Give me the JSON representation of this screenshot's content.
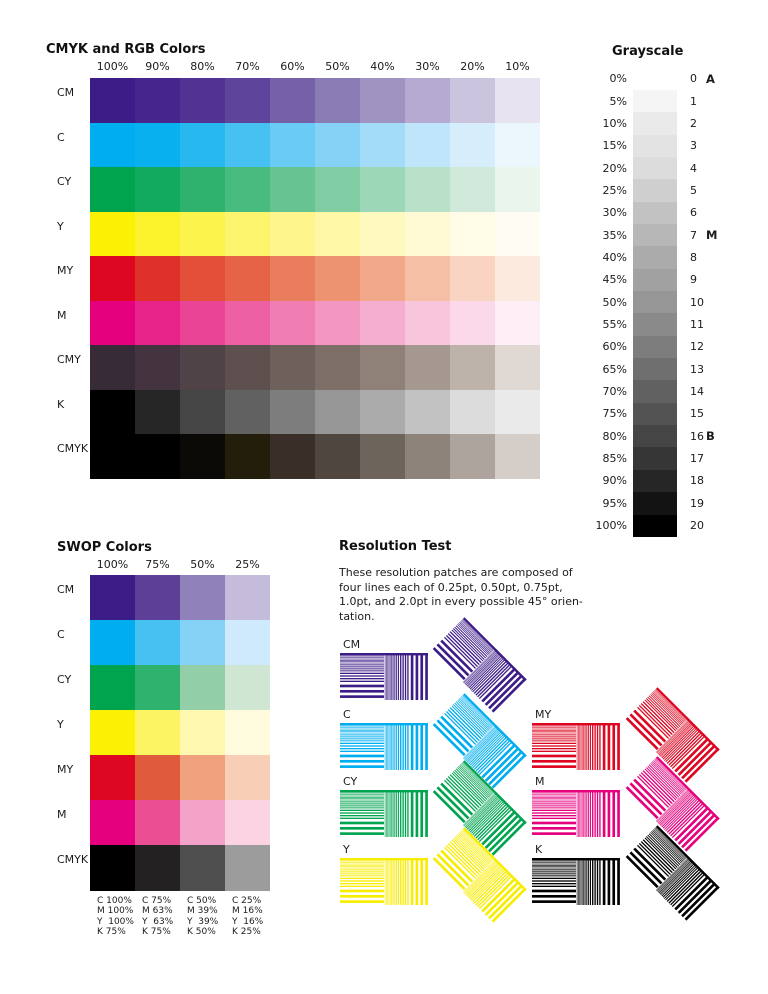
{
  "page": {
    "background": "#ffffff",
    "text_color": "#1b1b1b"
  },
  "cmyk_rgb": {
    "title": "CMYK and RGB Colors",
    "column_headers": [
      "100%",
      "90%",
      "80%",
      "70%",
      "60%",
      "50%",
      "40%",
      "30%",
      "20%",
      "10%"
    ],
    "rows": [
      {
        "label": "CM",
        "cells": [
          "#3c1d87",
          "#46258c",
          "#523394",
          "#5f449c",
          "#7661a9",
          "#8a7cb4",
          "#9f93c2",
          "#b5abd0",
          "#cbc4de",
          "#e7e3f1"
        ]
      },
      {
        "label": "C",
        "cells": [
          "#00adee",
          "#09b0ef",
          "#27b8f0",
          "#47c0f2",
          "#6acbf4",
          "#85d2f6",
          "#a2dcf8",
          "#bfe5fa",
          "#d6edfb",
          "#ebf6fd"
        ]
      },
      {
        "label": "CY",
        "cells": [
          "#00a44f",
          "#12aa5c",
          "#2eb26d",
          "#48bb7f",
          "#65c491",
          "#80cda4",
          "#9cd7b7",
          "#b9e1ca",
          "#d1e9da",
          "#eaf5ec"
        ]
      },
      {
        "label": "Y",
        "cells": [
          "#fcf005",
          "#fcf22b",
          "#fdf34d",
          "#fdf46d",
          "#fef68c",
          "#fef7a6",
          "#fef9bf",
          "#fffad4",
          "#fffce7",
          "#fffdf3"
        ]
      },
      {
        "label": "MY",
        "cells": [
          "#dd0721",
          "#df3129",
          "#e34f38",
          "#e66347",
          "#ea7d5e",
          "#ee9372",
          "#f1a88a",
          "#f5bfa5",
          "#f9d4c2",
          "#fdeadf"
        ]
      },
      {
        "label": "M",
        "cells": [
          "#e5007d",
          "#e72288",
          "#ea4496",
          "#ed61a4",
          "#f07eb3",
          "#f396c1",
          "#f6aed0",
          "#f9c5dd",
          "#fcd9e9",
          "#feeef5"
        ]
      },
      {
        "label": "CMY",
        "cells": [
          "#372b38",
          "#433440",
          "#4f4347",
          "#5d504f",
          "#6e605b",
          "#7d6f68",
          "#8f8078",
          "#a59890",
          "#beb3ab",
          "#e0d9d3"
        ]
      },
      {
        "label": "K",
        "cells": [
          "#000000",
          "#262626",
          "#454545",
          "#616161",
          "#7d7d7d",
          "#969696",
          "#ababab",
          "#c2c2c2",
          "#dcdcdc",
          "#eaeaea"
        ]
      },
      {
        "label": "CMYK",
        "cells": [
          "#000000",
          "#000000",
          "#0c0a07",
          "#231d0b",
          "#3a2f28",
          "#4e463f",
          "#6d645c",
          "#8d837b",
          "#aea49e",
          "#d5cdc8"
        ]
      }
    ]
  },
  "grayscale": {
    "title": "Grayscale",
    "steps": [
      {
        "pct": "0%",
        "num": "0",
        "letter": "A",
        "hex": "#ffffff"
      },
      {
        "pct": "5%",
        "num": "1",
        "letter": "",
        "hex": "#f5f5f5"
      },
      {
        "pct": "10%",
        "num": "2",
        "letter": "",
        "hex": "#eaeaea"
      },
      {
        "pct": "15%",
        "num": "3",
        "letter": "",
        "hex": "#e3e3e3"
      },
      {
        "pct": "20%",
        "num": "4",
        "letter": "",
        "hex": "#dcdcdc"
      },
      {
        "pct": "25%",
        "num": "5",
        "letter": "",
        "hex": "#cfcfcf"
      },
      {
        "pct": "30%",
        "num": "6",
        "letter": "",
        "hex": "#c2c2c2"
      },
      {
        "pct": "35%",
        "num": "7",
        "letter": "M",
        "hex": "#b7b7b7"
      },
      {
        "pct": "40%",
        "num": "8",
        "letter": "",
        "hex": "#ababab"
      },
      {
        "pct": "45%",
        "num": "9",
        "letter": "",
        "hex": "#a1a1a1"
      },
      {
        "pct": "50%",
        "num": "10",
        "letter": "",
        "hex": "#969696"
      },
      {
        "pct": "55%",
        "num": "11",
        "letter": "",
        "hex": "#8a8a8a"
      },
      {
        "pct": "60%",
        "num": "12",
        "letter": "",
        "hex": "#7d7d7d"
      },
      {
        "pct": "65%",
        "num": "13",
        "letter": "",
        "hex": "#6f6f6f"
      },
      {
        "pct": "70%",
        "num": "14",
        "letter": "",
        "hex": "#616161"
      },
      {
        "pct": "75%",
        "num": "15",
        "letter": "",
        "hex": "#535353"
      },
      {
        "pct": "80%",
        "num": "16",
        "letter": "B",
        "hex": "#454545"
      },
      {
        "pct": "85%",
        "num": "17",
        "letter": "",
        "hex": "#363636"
      },
      {
        "pct": "90%",
        "num": "18",
        "letter": "",
        "hex": "#262626"
      },
      {
        "pct": "95%",
        "num": "19",
        "letter": "",
        "hex": "#131313"
      },
      {
        "pct": "100%",
        "num": "20",
        "letter": "",
        "hex": "#000000"
      }
    ]
  },
  "swop": {
    "title": "SWOP Colors",
    "column_headers": [
      "100%",
      "75%",
      "50%",
      "25%"
    ],
    "rows": [
      {
        "label": "CM",
        "cells": [
          "#3c1d87",
          "#5d3f97",
          "#9181bb",
          "#c5bcdb"
        ]
      },
      {
        "label": "C",
        "cells": [
          "#00adee",
          "#47c0f2",
          "#85d2f6",
          "#cfeafc"
        ]
      },
      {
        "label": "CY",
        "cells": [
          "#00a44f",
          "#2eb26d",
          "#92cfa8",
          "#cfe7d2"
        ]
      },
      {
        "label": "Y",
        "cells": [
          "#fcf005",
          "#fdf463",
          "#fef8b0",
          "#fffbdc"
        ]
      },
      {
        "label": "MY",
        "cells": [
          "#dd0721",
          "#e05a3c",
          "#f0a17e",
          "#f8cfb6"
        ]
      },
      {
        "label": "M",
        "cells": [
          "#e5007d",
          "#ea4f94",
          "#f4a3c8",
          "#fbd3e3"
        ]
      },
      {
        "label": "CMYK",
        "cells": [
          "#000000",
          "#242122",
          "#4e4e4e",
          "#9c9c9c"
        ]
      }
    ],
    "footnotes": [
      "C 100%\nM 100%\nY  100%\nK 75%",
      "C 75%\nM 63%\nY  63%\nK 75%",
      "C 50%\nM 39%\nY  39%\nK 50%",
      "C 25%\nM 16%\nY  16%\nK 25%"
    ]
  },
  "resolution": {
    "title": "Resolution Test",
    "description": "These resolution patches are composed of\nfour lines each of 0.25pt, 0.50pt, 0.75pt,\n1.0pt, and 2.0pt in every possible 45° orien-\ntation.",
    "line_weights_pt": [
      "0.25",
      "0.50",
      "0.75",
      "1.0",
      "2.0"
    ],
    "patches": [
      {
        "label": "CM",
        "color": "#3c1d87"
      },
      {
        "label": "C",
        "color": "#00adee"
      },
      {
        "label": "CY",
        "color": "#00a44f"
      },
      {
        "label": "Y",
        "color": "#f8ed00"
      },
      {
        "label": "MY",
        "color": "#dd0721"
      },
      {
        "label": "M",
        "color": "#e5007d"
      },
      {
        "label": "K",
        "color": "#000000"
      }
    ]
  }
}
